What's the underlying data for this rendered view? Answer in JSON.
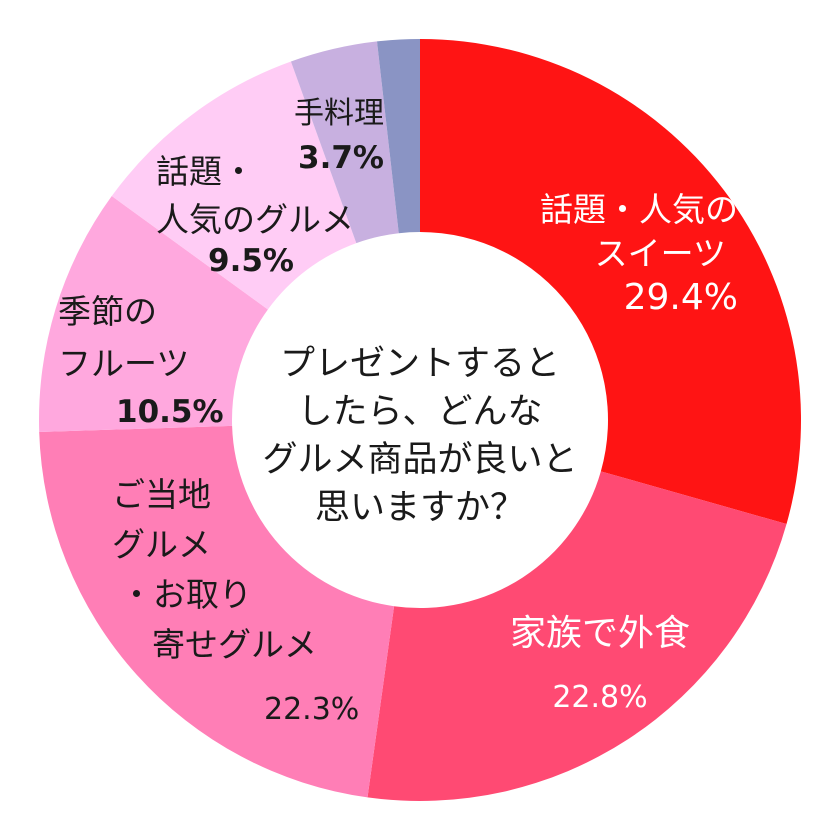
{
  "chart_data": {
    "type": "pie",
    "variant": "donut",
    "title": "プレゼントするとしたら、どんなグルメ商品が良いと思いますか？",
    "start_angle_deg": 0,
    "direction": "clockwise",
    "center": [
      420,
      420
    ],
    "outer_radius": 381,
    "inner_radius": 188,
    "slices": [
      {
        "label": "話題・人気のスイーツ",
        "value": 29.4,
        "color": "#ff1414"
      },
      {
        "label": "家族で外食",
        "value": 22.8,
        "color": "#ff4a73"
      },
      {
        "label": "ご当地グルメ・お取り寄せグルメ",
        "value": 22.3,
        "color": "#ff7eb6"
      },
      {
        "label": "季節のフルーツ",
        "value": 10.5,
        "color": "#ffa8de"
      },
      {
        "label": "話題・人気のグルメ",
        "value": 9.5,
        "color": "#ffccf5"
      },
      {
        "label": "手料理",
        "value": 3.7,
        "color": "#c8b0e0"
      },
      {
        "label": "",
        "value": 1.8,
        "color": "#8a94c4"
      }
    ],
    "legend": "none"
  },
  "center_question": {
    "lines": [
      "プレゼントすると",
      "したら、どんな",
      "グルメ商品が良いと",
      "思いますか？"
    ]
  },
  "labels": {
    "sweets": {
      "lines": [
        "話題・人気の",
        "スイーツ"
      ],
      "pct": "29.4%"
    },
    "dining_out": {
      "lines": [
        "家族で外食"
      ],
      "pct": "22.8%"
    },
    "local_gourmet": {
      "lines": [
        "ご当地",
        "グルメ",
        "・お取り",
        "寄せグルメ"
      ],
      "pct": "22.3%"
    },
    "fruit": {
      "lines": [
        "季節の",
        "フルーツ"
      ],
      "pct": "10.5%"
    },
    "popular_gourmet": {
      "lines": [
        "話題・",
        "人気のグルメ"
      ],
      "pct": "9.5%"
    },
    "home_cooking": {
      "lines": [
        "手料理"
      ],
      "pct": "3.7%"
    }
  }
}
